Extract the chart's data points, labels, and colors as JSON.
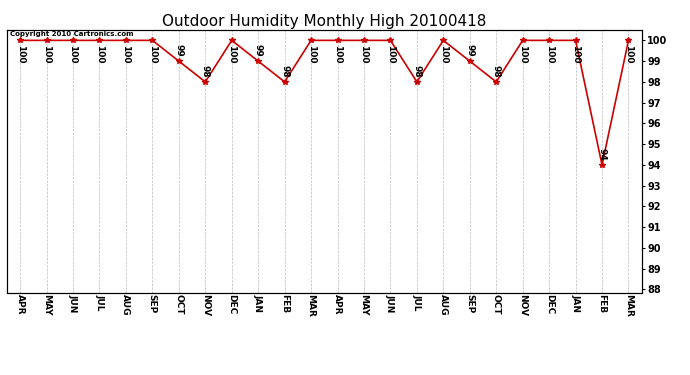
{
  "title": "Outdoor Humidity Monthly High 20100418",
  "copyright": "Copyright 2010 Cartronics.com",
  "months": [
    "APR",
    "MAY",
    "JUN",
    "JUL",
    "AUG",
    "SEP",
    "OCT",
    "NOV",
    "DEC",
    "JAN",
    "FEB",
    "MAR",
    "APR",
    "MAY",
    "JUN",
    "JUL",
    "AUG",
    "SEP",
    "OCT",
    "NOV",
    "DEC",
    "JAN",
    "FEB",
    "MAR"
  ],
  "values": [
    100,
    100,
    100,
    100,
    100,
    100,
    99,
    98,
    100,
    99,
    98,
    100,
    100,
    100,
    100,
    98,
    100,
    99,
    98,
    100,
    100,
    100,
    94,
    100
  ],
  "line_color": "#cc0000",
  "marker_color": "#cc0000",
  "bg_color": "#ffffff",
  "grid_color": "#bbbbbb",
  "ylim_min": 88,
  "ylim_max": 100,
  "ytick_step": 1,
  "title_fontsize": 11,
  "label_fontsize": 6.5,
  "copyright_fontsize": 5.0
}
